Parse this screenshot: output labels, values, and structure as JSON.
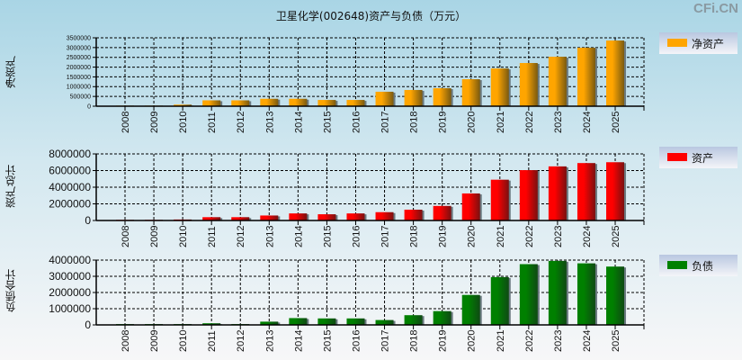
{
  "title": "卫星化学(002648)资产与负债（万元）",
  "watermark": "CFi.CN",
  "chart_data": [
    {
      "type": "bar",
      "title": "净资产",
      "ylabel": "净资产",
      "legend": "净资产",
      "legend_position": "right",
      "color": "#ffa500",
      "dark": "#7a5a10",
      "categories": [
        "2008",
        "2009",
        "2010",
        "2011",
        "2012",
        "2013",
        "2014",
        "2015",
        "2016",
        "2017",
        "2018",
        "2019",
        "2020",
        "2021",
        "2022",
        "2023",
        "2024",
        "2025"
      ],
      "yticks": [
        "0",
        "500000",
        "1000000",
        "1500000",
        "2000000",
        "2500000",
        "3000000",
        "3500000"
      ],
      "ylim": [
        0,
        3500000
      ],
      "grid": true,
      "values": [
        30000,
        30000,
        80000,
        300000,
        300000,
        380000,
        380000,
        320000,
        320000,
        740000,
        830000,
        920000,
        1380000,
        1930000,
        2210000,
        2530000,
        2990000,
        3360000
      ]
    },
    {
      "type": "bar",
      "title": "资产",
      "ylabel": "资产总计",
      "legend": "资产",
      "legend_position": "right",
      "color": "#ff0000",
      "dark": "#7a1010",
      "categories": [
        "2008",
        "2009",
        "2010",
        "2011",
        "2012",
        "2013",
        "2014",
        "2015",
        "2016",
        "2017",
        "2018",
        "2019",
        "2020",
        "2021",
        "2022",
        "2023",
        "2024",
        "2025"
      ],
      "yticks": [
        "0",
        "2000000",
        "4000000",
        "6000000",
        "8000000"
      ],
      "ylim": [
        0,
        8000000
      ],
      "grid": true,
      "values": [
        80000,
        80000,
        120000,
        400000,
        400000,
        600000,
        850000,
        750000,
        850000,
        1000000,
        1300000,
        1750000,
        3250000,
        4900000,
        6050000,
        6500000,
        6900000,
        7000000
      ]
    },
    {
      "type": "bar",
      "title": "负债",
      "ylabel": "负债合计",
      "legend": "负债",
      "legend_position": "right",
      "color": "#008000",
      "dark": "#0f4a14",
      "categories": [
        "2008",
        "2009",
        "2010",
        "2011",
        "2012",
        "2013",
        "2014",
        "2015",
        "2016",
        "2017",
        "2018",
        "2019",
        "2020",
        "2021",
        "2022",
        "2023",
        "2024",
        "2025"
      ],
      "yticks": [
        "0",
        "1000000",
        "2000000",
        "3000000",
        "4000000"
      ],
      "ylim": [
        0,
        4000000
      ],
      "grid": true,
      "values": [
        50000,
        50000,
        50000,
        100000,
        50000,
        200000,
        420000,
        400000,
        400000,
        300000,
        600000,
        850000,
        1850000,
        2950000,
        3750000,
        3950000,
        3800000,
        3600000
      ]
    }
  ]
}
